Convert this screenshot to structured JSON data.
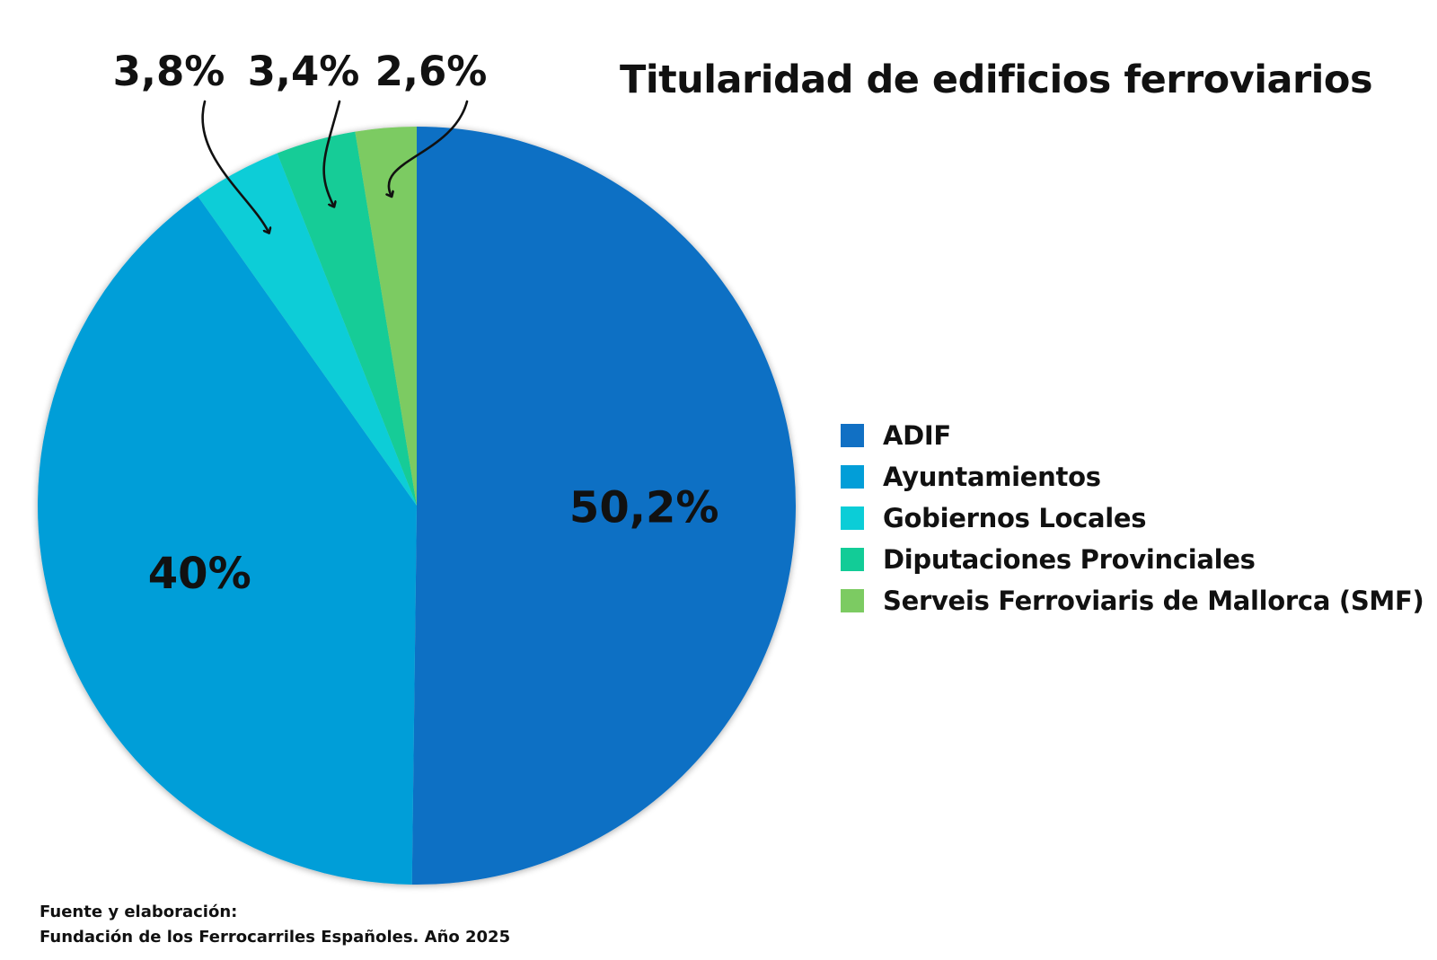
{
  "chart_data": {
    "type": "pie",
    "title": "Titularidad de edificios ferroviarios",
    "slices": [
      {
        "label": "ADIF",
        "value": 50.2,
        "display": "50,2%",
        "color": "#1170C4"
      },
      {
        "label": "Ayuntamientos",
        "value": 40,
        "display": "40%",
        "color": "#029ED8"
      },
      {
        "label": "Gobiernos Locales",
        "value": 3.8,
        "display": "3,8%",
        "color": "#0BCDD7"
      },
      {
        "label": "Diputaciones Provinciales",
        "value": 3.4,
        "display": "3,4%",
        "color": "#12CC97"
      },
      {
        "label": "Serveis Ferroviaris de Mallorca (SMF)",
        "value": 2.6,
        "display": "2,6%",
        "color": "#7CCB62"
      }
    ],
    "legend_position": "right"
  },
  "source": {
    "line1": "Fuente y elaboración:",
    "line2": "Fundación de los Ferrocarriles Españoles. Año 2025"
  }
}
